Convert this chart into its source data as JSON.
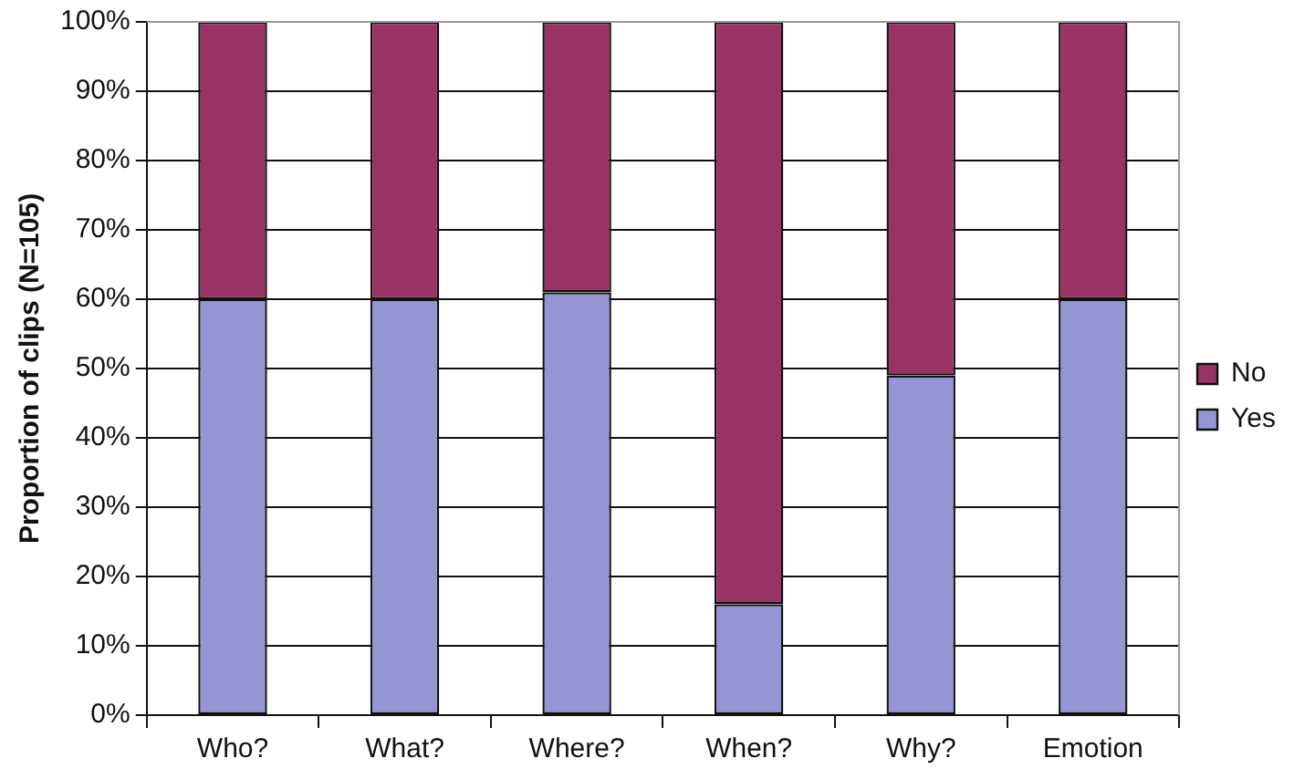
{
  "chart_data": {
    "type": "bar",
    "stacked": true,
    "ylabel": "Proportion of clips (N=105)",
    "categories": [
      "Who?",
      "What?",
      "Where?",
      "When?",
      "Why?",
      "Emotion"
    ],
    "series": [
      {
        "name": "Yes",
        "color": "#9595d3",
        "values": [
          60,
          60,
          61,
          16,
          49,
          60
        ]
      },
      {
        "name": "No",
        "color": "#993364",
        "values": [
          40,
          40,
          39,
          84,
          51,
          40
        ]
      }
    ],
    "ylim": [
      0,
      100
    ],
    "yticks": [
      {
        "value": 0,
        "label": "0%"
      },
      {
        "value": 10,
        "label": "10%"
      },
      {
        "value": 20,
        "label": "20%"
      },
      {
        "value": 30,
        "label": "30%"
      },
      {
        "value": 40,
        "label": "40%"
      },
      {
        "value": 50,
        "label": "50%"
      },
      {
        "value": 60,
        "label": "60%"
      },
      {
        "value": 70,
        "label": "70%"
      },
      {
        "value": 80,
        "label": "80%"
      },
      {
        "value": 90,
        "label": "90%"
      },
      {
        "value": 100,
        "label": "100%"
      }
    ],
    "grid": "y",
    "legend": "right"
  }
}
